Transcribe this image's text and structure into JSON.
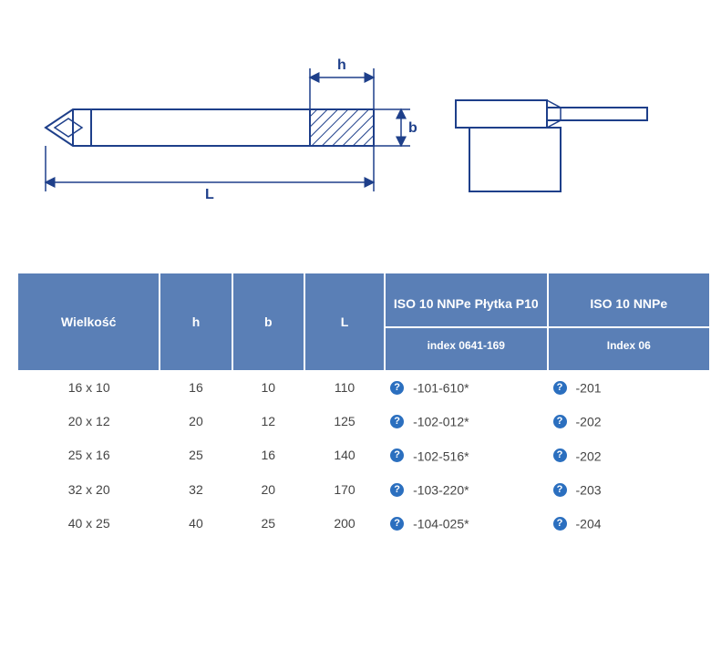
{
  "diagram": {
    "labels": {
      "h": "h",
      "b": "b",
      "L": "L"
    },
    "stroke": "#1e3f8a",
    "hatchStroke": "#1e3f8a"
  },
  "table": {
    "headers": {
      "size": "Wielkość",
      "h": "h",
      "b": "b",
      "L": "L",
      "iso1_top": "ISO 10 NNPe Płytka P10",
      "iso1_sub": "index 0641-169",
      "iso2_top": "ISO 10 NNPe",
      "iso2_sub": "Index 06"
    },
    "rows": [
      {
        "size": "16 x 10",
        "h": "16",
        "b": "10",
        "L": "110",
        "code1": "-101-610*",
        "code2": "-201"
      },
      {
        "size": "20 x 12",
        "h": "20",
        "b": "12",
        "L": "125",
        "code1": "-102-012*",
        "code2": "-202"
      },
      {
        "size": "25 x 16",
        "h": "25",
        "b": "16",
        "L": "140",
        "code1": "-102-516*",
        "code2": "-202"
      },
      {
        "size": "32 x 20",
        "h": "32",
        "b": "20",
        "L": "170",
        "code1": "-103-220*",
        "code2": "-203"
      },
      {
        "size": "40 x 25",
        "h": "40",
        "b": "25",
        "L": "200",
        "code1": "-104-025*",
        "code2": "-204"
      }
    ]
  }
}
